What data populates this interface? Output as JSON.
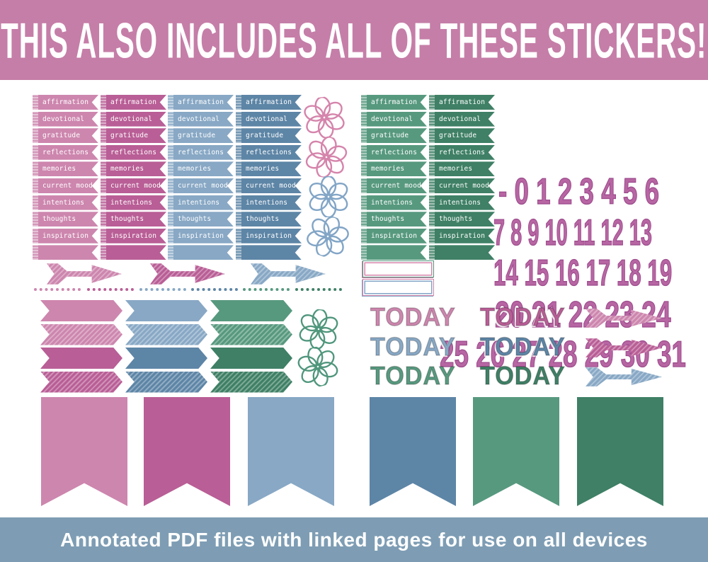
{
  "title_banner": {
    "text": "THIS ALSO INCLUDES ALL OF THESE STICKERS!",
    "bg": "#c57ea8",
    "text_color": "#ffffff"
  },
  "footer_banner": {
    "text": "Annotated PDF files with linked pages for use on all devices",
    "bg": "#7e9db4",
    "text_color": "#ffffff"
  },
  "palette": {
    "light_pink": "#cd86ae",
    "dark_pink": "#b95e96",
    "light_blue": "#88a8c5",
    "dark_blue": "#5d85a6",
    "light_green": "#57997f",
    "dark_green": "#3f8066"
  },
  "flower_colors": {
    "pink": "#d584ab",
    "blue": "#82a5c6",
    "green": "#4f967c"
  },
  "flag_labels": [
    "affirmation",
    "devotional",
    "gratitude",
    "reflections",
    "memories",
    "current mood",
    "intentions",
    "thoughts",
    "inspiration",
    ""
  ],
  "flag_columns": [
    "light_pink",
    "dark_pink",
    "light_blue",
    "dark_blue",
    "light_green",
    "dark_green"
  ],
  "date_numbers": {
    "fill": "#b766a3",
    "outline": "#9d4b8c",
    "rows": [
      "- 0 1 2 3 4 5 6",
      "7 8 9 10 11 12 13",
      "14 15 16 17 18 19",
      "20 21 22 23 24",
      "25 26 27 28 29 30 31"
    ]
  },
  "today_label": "TODAY",
  "today_variants": [
    [
      "light_pink",
      "dark_pink"
    ],
    [
      "light_blue",
      "dark_blue"
    ],
    [
      "light_green",
      "dark_green"
    ]
  ],
  "arrows": {
    "large": [
      "light_pink",
      "dark_pink",
      "light_blue"
    ],
    "small": [
      "light_pink",
      "dark_pink",
      "light_blue"
    ]
  },
  "dotted_dividers": [
    "light_pink",
    "dark_pink",
    "light_blue",
    "dark_blue",
    "light_green",
    "dark_green"
  ],
  "chevron_columns": [
    {
      "family": "pink",
      "rows": [
        "light_pink",
        "light_pink",
        "dark_pink",
        "dark_pink"
      ]
    },
    {
      "family": "blue",
      "rows": [
        "light_blue",
        "light_blue",
        "dark_blue",
        "dark_blue"
      ]
    },
    {
      "family": "green",
      "rows": [
        "light_green",
        "light_green",
        "dark_green",
        "dark_green"
      ]
    }
  ],
  "chevron_row_styles": [
    "solid",
    "striped",
    "solid",
    "striped"
  ],
  "flowers": [
    "pink",
    "pink",
    "blue",
    "blue",
    "green",
    "green"
  ],
  "blank_boxes": [
    {
      "outer": "green",
      "inner": "pink"
    },
    {
      "outer": "pink",
      "inner": "blue"
    }
  ],
  "pennants": [
    "light_pink",
    "dark_pink",
    "light_blue",
    "dark_blue",
    "light_green",
    "dark_green"
  ]
}
